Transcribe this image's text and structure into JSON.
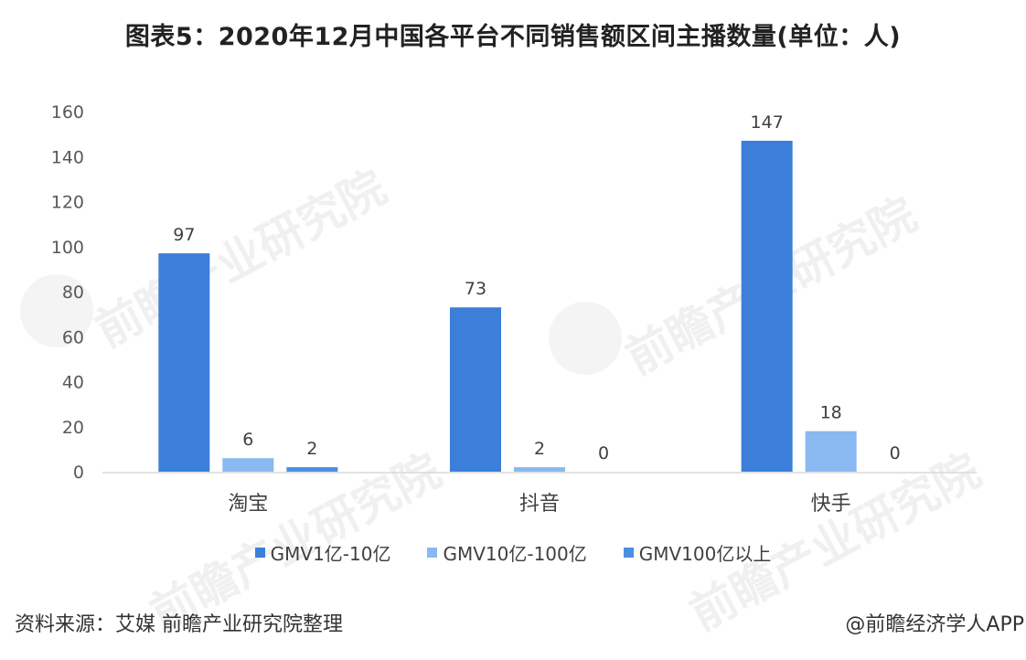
{
  "title": "图表5：2020年12月中国各平台不同销售额区间主播数量(单位：人)",
  "colors": {
    "series1": "#3b7fdb",
    "series2": "#8ab8f0",
    "series3": "#4a90e2",
    "axis": "#d9d9d9",
    "watermark": "#c8c8c8"
  },
  "watermark_text": "前瞻产业研究院",
  "chart_data": {
    "type": "bar",
    "categories": [
      "淘宝",
      "抖音",
      "快手"
    ],
    "series": [
      {
        "name": "GMV1亿-10亿",
        "values": [
          97,
          73,
          147
        ]
      },
      {
        "name": "GMV10亿-100亿",
        "values": [
          6,
          2,
          18
        ]
      },
      {
        "name": "GMV100亿以上",
        "values": [
          2,
          0,
          0
        ]
      }
    ],
    "ylim": [
      0,
      160
    ],
    "yticks": [
      0,
      20,
      40,
      60,
      80,
      100,
      120,
      140,
      160
    ],
    "grid": false,
    "legend_position": "bottom",
    "data_labels": true
  },
  "footer": {
    "source": "资料来源：艾媒 前瞻产业研究院整理",
    "credit": "@前瞻经济学人APP"
  }
}
